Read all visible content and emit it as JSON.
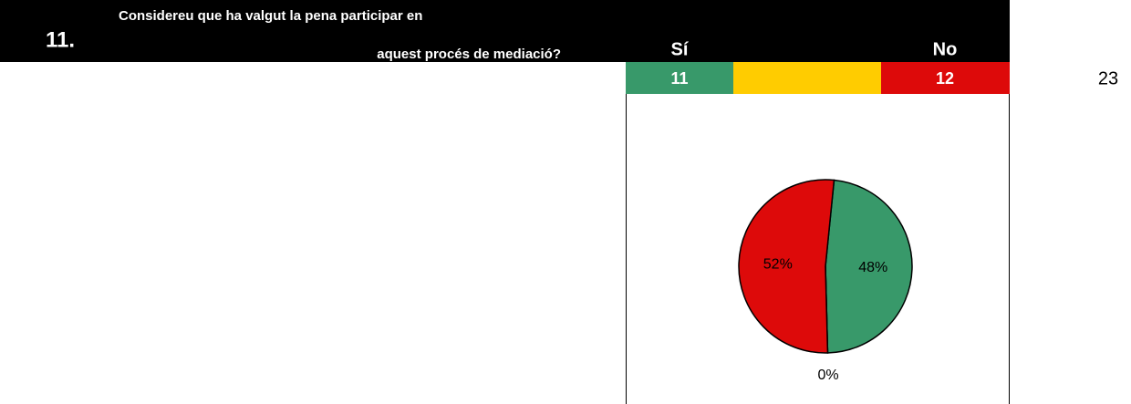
{
  "header": {
    "number": "11.",
    "question_line1": "Considereu que ha valgut la pena participar en",
    "question_line2": "aquest procés de mediació?",
    "yes": "Sí",
    "no": "No"
  },
  "counts": {
    "yes": 11,
    "no": 12,
    "total": 23
  },
  "chart_data": {
    "type": "pie",
    "values": [
      48,
      0,
      52
    ],
    "value_labels": [
      "48%",
      "0%",
      "52%"
    ],
    "colors": [
      "#38996a",
      "#ffcc00",
      "#dd0a0a"
    ]
  }
}
